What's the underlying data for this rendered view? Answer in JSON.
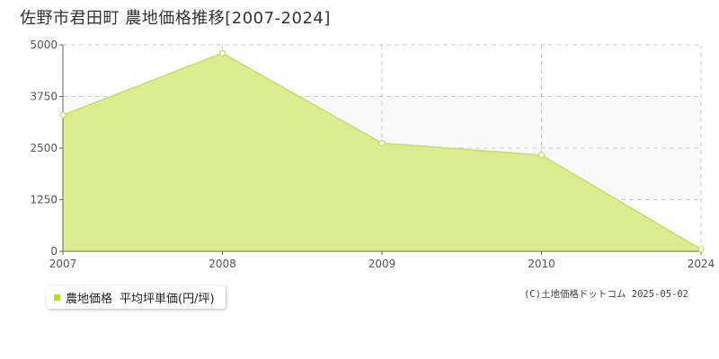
{
  "title": "佐野市君田町 農地価格推移[2007-2024]",
  "colors": {
    "fill": "#dced91",
    "line": "#c6e060",
    "marker_fill": "#ffffff",
    "plot_bg": "#ffffff",
    "band_bg": "#f9f9f9",
    "grid": "#cccccc",
    "legend_marker": "#b5d94a"
  },
  "legend": {
    "label": "農地価格",
    "unit_label": "平均坪単価(円/坪)"
  },
  "copyright": "(C)土地価格ドットコム 2025-05-02",
  "chart_data": {
    "type": "area",
    "x": [
      "2007",
      "2008",
      "2009",
      "2010",
      "2024"
    ],
    "series": [
      {
        "name": "農地価格",
        "values": [
          3300,
          4800,
          2620,
          2330,
          50
        ]
      }
    ],
    "yticks": [
      "0",
      "1250",
      "2500",
      "3750",
      "5000"
    ],
    "ylim": [
      0,
      5000
    ],
    "grid": true,
    "legend_position": "bottom-left"
  }
}
